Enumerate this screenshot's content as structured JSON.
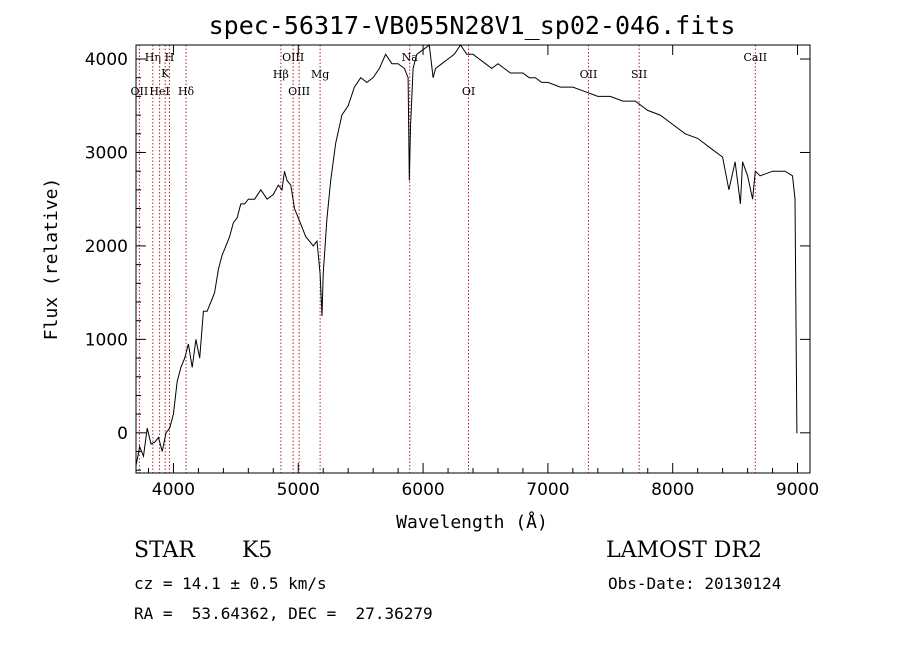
{
  "chart_data": {
    "type": "line",
    "title": "spec-56317-VB055N28V1_sp02-046.fits",
    "xlabel": "Wavelength (Å)",
    "ylabel": "Flux (relative)",
    "xlim": [
      3700,
      9100
    ],
    "ylim": [
      -430,
      4150
    ],
    "xticks": [
      4000,
      5000,
      6000,
      7000,
      8000,
      9000
    ],
    "yticks": [
      0,
      1000,
      2000,
      3000,
      4000
    ],
    "grid": false,
    "line_color": "#000000",
    "marker_color": "#b22222",
    "series": [
      {
        "x": [
          3700,
          3730,
          3760,
          3790,
          3820,
          3850,
          3880,
          3910,
          3940,
          3970,
          4000,
          4030,
          4060,
          4090,
          4120,
          4150,
          4180,
          4210,
          4240,
          4270,
          4300,
          4330,
          4360,
          4390,
          4420,
          4450,
          4480,
          4510,
          4540,
          4570,
          4600,
          4650,
          4700,
          4750,
          4800,
          4840,
          4870,
          4890,
          4910,
          4940,
          4970,
          5000,
          5030,
          5060,
          5090,
          5120,
          5150,
          5175,
          5190,
          5200,
          5230,
          5260,
          5300,
          5350,
          5400,
          5450,
          5500,
          5550,
          5600,
          5650,
          5700,
          5750,
          5800,
          5850,
          5880,
          5890,
          5900,
          5920,
          5950,
          6000,
          6050,
          6080,
          6100,
          6150,
          6200,
          6250,
          6300,
          6350,
          6400,
          6450,
          6500,
          6550,
          6600,
          6650,
          6700,
          6750,
          6800,
          6850,
          6900,
          6950,
          7000,
          7100,
          7200,
          7300,
          7400,
          7500,
          7600,
          7700,
          7800,
          7900,
          8000,
          8100,
          8200,
          8300,
          8400,
          8450,
          8500,
          8542,
          8560,
          8600,
          8640,
          8662,
          8700,
          8800,
          8900,
          8960,
          8980,
          8995,
          9000
        ],
        "y": [
          -350,
          -150,
          -250,
          50,
          -120,
          -100,
          -50,
          -200,
          0,
          50,
          200,
          550,
          700,
          800,
          950,
          700,
          1000,
          800,
          1300,
          1300,
          1400,
          1500,
          1750,
          1900,
          2000,
          2100,
          2250,
          2300,
          2450,
          2450,
          2500,
          2500,
          2600,
          2500,
          2550,
          2650,
          2600,
          2800,
          2700,
          2650,
          2400,
          2300,
          2200,
          2100,
          2050,
          2000,
          2050,
          1700,
          1250,
          1700,
          2300,
          2700,
          3100,
          3400,
          3500,
          3700,
          3800,
          3750,
          3800,
          3900,
          4050,
          3950,
          3950,
          3900,
          3800,
          2700,
          3300,
          3900,
          4050,
          4100,
          4150,
          3800,
          3900,
          3950,
          4000,
          4050,
          4150,
          4050,
          4050,
          4000,
          3950,
          3900,
          3950,
          3900,
          3850,
          3850,
          3850,
          3800,
          3800,
          3750,
          3750,
          3700,
          3700,
          3650,
          3600,
          3600,
          3550,
          3550,
          3450,
          3400,
          3300,
          3200,
          3150,
          3050,
          2950,
          2600,
          2900,
          2450,
          2900,
          2750,
          2500,
          2800,
          2750,
          2800,
          2800,
          2750,
          2500,
          0,
          0
        ]
      }
    ],
    "line_markers": [
      {
        "label": "OII",
        "x": 3727,
        "row": 4
      },
      {
        "label": "Hη",
        "x": 3835,
        "row": 1
      },
      {
        "label": "HeI",
        "x": 3889,
        "row": 4
      },
      {
        "label": "K",
        "x": 3934,
        "row": 2
      },
      {
        "label": "H",
        "x": 3968,
        "row": 1
      },
      {
        "label": "Hδ",
        "x": 4101,
        "row": 4
      },
      {
        "label": "Hβ",
        "x": 4861,
        "row": 3
      },
      {
        "label": "OIII",
        "x": 4959,
        "row": 1
      },
      {
        "label": "OIII",
        "x": 5007,
        "row": 4
      },
      {
        "label": "Mg",
        "x": 5175,
        "row": 3
      },
      {
        "label": "Na",
        "x": 5893,
        "row": 1
      },
      {
        "label": "OI",
        "x": 6364,
        "row": 4
      },
      {
        "label": "OII",
        "x": 7325,
        "row": 3
      },
      {
        "label": "SII",
        "x": 7731,
        "row": 3
      },
      {
        "label": "CaII",
        "x": 8662,
        "row": 1
      }
    ]
  },
  "info": {
    "class_label": "STAR",
    "subclass_label": "K5",
    "survey": "LAMOST DR2",
    "cz_text": "cz = 14.1 ± 0.5 km/s",
    "obs_date": "Obs-Date: 20130124",
    "coords": "RA =  53.64362, DEC =  27.36279"
  }
}
